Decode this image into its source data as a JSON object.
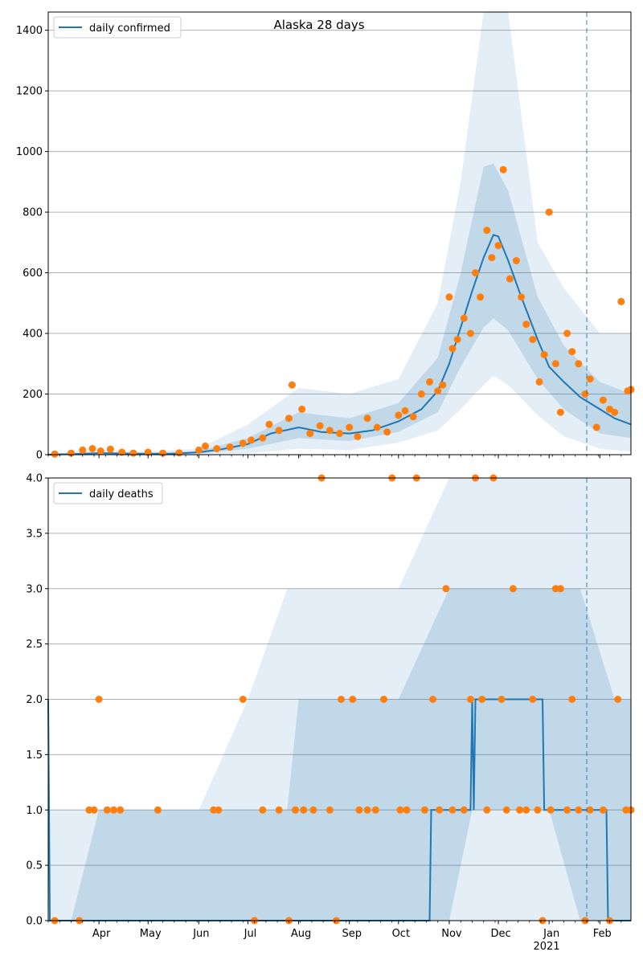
{
  "chart_data": [
    {
      "type": "line",
      "title": "Alaska 28 days",
      "xlabel": "",
      "ylabel": "",
      "ylim": [
        0,
        1460
      ],
      "yticks": [
        0,
        200,
        400,
        600,
        800,
        1000,
        1200,
        1400
      ],
      "grid": true,
      "legend_position": "top-left",
      "series": [
        {
          "name": "daily confirmed",
          "type": "line",
          "color": "#1f77b4",
          "x": [
            "2020-03-01",
            "2020-03-15",
            "2020-04-01",
            "2020-04-15",
            "2020-05-01",
            "2020-05-15",
            "2020-06-01",
            "2020-06-15",
            "2020-07-01",
            "2020-07-15",
            "2020-08-01",
            "2020-08-15",
            "2020-09-01",
            "2020-09-15",
            "2020-10-01",
            "2020-10-15",
            "2020-10-25",
            "2020-11-01",
            "2020-11-08",
            "2020-11-15",
            "2020-11-22",
            "2020-11-28",
            "2020-12-01",
            "2020-12-07",
            "2020-12-15",
            "2020-12-25",
            "2021-01-01",
            "2021-01-10",
            "2021-01-20",
            "2021-02-01",
            "2021-02-10",
            "2021-02-20"
          ],
          "values": [
            0,
            2,
            5,
            4,
            3,
            3,
            8,
            18,
            35,
            70,
            90,
            75,
            70,
            80,
            110,
            150,
            210,
            300,
            420,
            540,
            650,
            725,
            720,
            640,
            520,
            380,
            290,
            240,
            190,
            150,
            120,
            100
          ]
        },
        {
          "name": "",
          "type": "band",
          "color": "#1f77b4",
          "x": [
            "2020-03-01",
            "2020-04-01",
            "2020-05-01",
            "2020-06-01",
            "2020-07-01",
            "2020-08-01",
            "2020-09-01",
            "2020-10-01",
            "2020-10-25",
            "2020-11-08",
            "2020-11-22",
            "2020-11-28",
            "2020-12-07",
            "2020-12-25",
            "2021-01-10",
            "2021-02-01",
            "2021-02-20"
          ],
          "outer_low": [
            0,
            0,
            0,
            0,
            5,
            20,
            15,
            40,
            80,
            150,
            230,
            260,
            230,
            130,
            60,
            20,
            10
          ],
          "outer_high": [
            5,
            15,
            10,
            20,
            100,
            220,
            200,
            250,
            500,
            900,
            1460,
            1460,
            1460,
            700,
            550,
            400,
            400
          ],
          "inner_low": [
            0,
            2,
            1,
            3,
            20,
            55,
            45,
            75,
            140,
            290,
            420,
            450,
            410,
            250,
            150,
            70,
            55
          ],
          "inner_high": [
            2,
            8,
            6,
            12,
            55,
            140,
            120,
            170,
            320,
            600,
            950,
            960,
            870,
            520,
            360,
            240,
            200
          ]
        },
        {
          "name": "",
          "type": "scatter",
          "color": "#ff7f0e",
          "x": [
            "2020-03-05",
            "2020-03-15",
            "2020-03-22",
            "2020-03-28",
            "2020-04-02",
            "2020-04-08",
            "2020-04-15",
            "2020-04-22",
            "2020-05-01",
            "2020-05-10",
            "2020-05-20",
            "2020-06-01",
            "2020-06-05",
            "2020-06-12",
            "2020-06-20",
            "2020-06-28",
            "2020-07-03",
            "2020-07-10",
            "2020-07-14",
            "2020-07-20",
            "2020-07-26",
            "2020-07-28",
            "2020-08-03",
            "2020-08-08",
            "2020-08-14",
            "2020-08-20",
            "2020-08-26",
            "2020-09-01",
            "2020-09-06",
            "2020-09-12",
            "2020-09-18",
            "2020-09-24",
            "2020-10-01",
            "2020-10-05",
            "2020-10-10",
            "2020-10-15",
            "2020-10-20",
            "2020-10-25",
            "2020-10-28",
            "2020-11-01",
            "2020-11-03",
            "2020-11-06",
            "2020-11-10",
            "2020-11-14",
            "2020-11-17",
            "2020-11-20",
            "2020-11-24",
            "2020-11-27",
            "2020-12-01",
            "2020-12-04",
            "2020-12-08",
            "2020-12-12",
            "2020-12-15",
            "2020-12-18",
            "2020-12-22",
            "2020-12-26",
            "2020-12-29",
            "2021-01-01",
            "2021-01-05",
            "2021-01-08",
            "2021-01-12",
            "2021-01-15",
            "2021-01-19",
            "2021-01-23",
            "2021-01-26",
            "2021-01-30",
            "2021-02-03",
            "2021-02-07",
            "2021-02-10",
            "2021-02-14",
            "2021-02-18",
            "2021-02-20"
          ],
          "values": [
            2,
            5,
            15,
            20,
            12,
            18,
            8,
            5,
            8,
            5,
            6,
            15,
            28,
            20,
            25,
            38,
            48,
            55,
            100,
            80,
            120,
            230,
            150,
            70,
            95,
            80,
            70,
            90,
            60,
            120,
            90,
            75,
            130,
            145,
            125,
            200,
            240,
            210,
            230,
            520,
            350,
            380,
            450,
            400,
            600,
            520,
            740,
            650,
            690,
            940,
            580,
            640,
            520,
            430,
            380,
            240,
            330,
            800,
            300,
            140,
            400,
            340,
            300,
            200,
            250,
            90,
            180,
            150,
            140,
            505,
            210,
            215
          ]
        }
      ]
    },
    {
      "type": "line",
      "title": "",
      "xlabel": "",
      "ylabel": "",
      "ylim": [
        0,
        4
      ],
      "yticks": [
        "0.0",
        "0.5",
        "1.0",
        "1.5",
        "2.0",
        "2.5",
        "3.0",
        "3.5",
        "4.0"
      ],
      "grid": true,
      "legend_position": "top-left",
      "series": [
        {
          "name": "daily deaths",
          "type": "line",
          "color": "#1f77b4",
          "x": [
            "2020-03-01",
            "2020-03-02",
            "2020-10-20",
            "2020-10-21",
            "2020-11-14",
            "2020-11-15",
            "2020-11-16",
            "2020-11-17",
            "2020-12-28",
            "2020-12-29",
            "2021-02-05",
            "2021-02-06",
            "2021-02-20"
          ],
          "values": [
            2,
            0,
            0,
            1,
            1,
            2,
            1,
            2,
            2,
            1,
            1,
            0,
            0
          ]
        },
        {
          "name": "",
          "type": "band",
          "color": "#1f77b4",
          "x": [
            "2020-03-01",
            "2020-03-15",
            "2020-04-01",
            "2020-05-01",
            "2020-06-01",
            "2020-07-01",
            "2020-07-25",
            "2020-08-01",
            "2020-09-01",
            "2020-10-01",
            "2020-11-01",
            "2020-11-15",
            "2020-12-01",
            "2020-12-15",
            "2021-01-01",
            "2021-01-20",
            "2021-02-10",
            "2021-02-20"
          ],
          "outer_low": [
            0,
            0,
            0,
            0,
            0,
            0,
            0,
            0,
            0,
            0,
            0,
            0,
            0,
            0,
            0,
            0,
            0,
            0
          ],
          "outer_high": [
            1,
            1,
            1,
            1,
            1,
            2,
            3,
            3,
            3,
            3,
            4,
            4,
            4,
            4,
            4,
            4,
            4,
            4
          ],
          "inner_low": [
            0,
            0,
            0,
            0,
            0,
            0,
            0,
            0,
            0,
            0,
            0,
            1,
            1,
            1,
            1,
            0,
            0,
            0
          ],
          "inner_high": [
            0,
            0,
            1,
            1,
            1,
            1,
            1,
            2,
            2,
            2,
            3,
            3,
            3,
            3,
            3,
            3,
            2,
            2
          ]
        },
        {
          "name": "",
          "type": "scatter",
          "color": "#ff7f0e",
          "x": [
            "2020-03-05",
            "2020-03-20",
            "2020-03-26",
            "2020-03-29",
            "2020-04-01",
            "2020-04-06",
            "2020-04-10",
            "2020-04-14",
            "2020-05-07",
            "2020-06-10",
            "2020-06-13",
            "2020-06-28",
            "2020-07-05",
            "2020-07-10",
            "2020-07-20",
            "2020-07-26",
            "2020-07-30",
            "2020-08-04",
            "2020-08-10",
            "2020-08-15",
            "2020-08-20",
            "2020-08-24",
            "2020-08-27",
            "2020-09-03",
            "2020-09-07",
            "2020-09-12",
            "2020-09-17",
            "2020-09-22",
            "2020-09-27",
            "2020-10-02",
            "2020-10-06",
            "2020-10-12",
            "2020-10-17",
            "2020-10-22",
            "2020-10-26",
            "2020-10-30",
            "2020-11-03",
            "2020-11-10",
            "2020-11-14",
            "2020-11-17",
            "2020-11-21",
            "2020-11-24",
            "2020-11-28",
            "2020-12-03",
            "2020-12-06",
            "2020-12-10",
            "2020-12-14",
            "2020-12-18",
            "2020-12-22",
            "2020-12-25",
            "2020-12-28",
            "2021-01-02",
            "2021-01-05",
            "2021-01-08",
            "2021-01-12",
            "2021-01-15",
            "2021-01-19",
            "2021-01-23",
            "2021-01-26",
            "2021-02-03",
            "2021-02-07",
            "2021-02-12",
            "2021-02-17",
            "2021-02-20"
          ],
          "values": [
            0,
            0,
            1,
            1,
            2,
            1,
            1,
            1,
            1,
            1,
            1,
            2,
            0,
            1,
            1,
            0,
            1,
            1,
            1,
            4,
            1,
            0,
            2,
            2,
            1,
            1,
            1,
            2,
            4,
            1,
            1,
            4,
            1,
            2,
            1,
            3,
            1,
            1,
            2,
            4,
            2,
            1,
            4,
            2,
            1,
            3,
            1,
            1,
            2,
            1,
            0,
            1,
            3,
            3,
            1,
            2,
            1,
            0,
            1,
            1,
            0,
            2,
            1,
            1
          ]
        }
      ]
    }
  ],
  "x_axis": {
    "min": "2020-03-01",
    "max": "2021-02-20",
    "months": [
      {
        "label": "Apr",
        "date": "2020-04-01"
      },
      {
        "label": "May",
        "date": "2020-05-01"
      },
      {
        "label": "Jun",
        "date": "2020-06-01"
      },
      {
        "label": "Jul",
        "date": "2020-07-01"
      },
      {
        "label": "Aug",
        "date": "2020-08-01"
      },
      {
        "label": "Sep",
        "date": "2020-09-01"
      },
      {
        "label": "Oct",
        "date": "2020-10-01"
      },
      {
        "label": "Nov",
        "date": "2020-11-01"
      },
      {
        "label": "Dec",
        "date": "2020-12-01"
      },
      {
        "label": "Jan",
        "date": "2021-01-01"
      },
      {
        "label": "Feb",
        "date": "2021-02-01"
      }
    ],
    "year_label": "2021",
    "vline_date": "2021-01-24"
  }
}
